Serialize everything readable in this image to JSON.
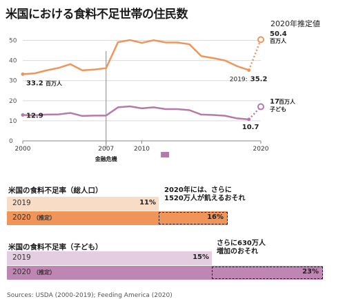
{
  "title": "米国における食料不足世帯の住民数",
  "chart_data": [
    {
      "type": "line",
      "x_ticks": [
        "2000",
        "2007",
        "2010",
        "2020"
      ],
      "y_ticks": [
        "0",
        "10",
        "20",
        "30",
        "40",
        "50"
      ],
      "ylim": [
        0,
        55
      ],
      "xlim": [
        2000,
        2020
      ],
      "grid": true,
      "series": [
        {
          "name": "総人口",
          "color": "#f0955a",
          "x": [
            2000,
            2001,
            2002,
            2003,
            2004,
            2005,
            2006,
            2007,
            2008,
            2009,
            2010,
            2011,
            2012,
            2013,
            2014,
            2015,
            2016,
            2017,
            2018,
            2019
          ],
          "values": [
            33.2,
            33.6,
            35.1,
            36.3,
            38.2,
            35.1,
            35.5,
            36.2,
            49.1,
            50.2,
            48.8,
            50.1,
            49.0,
            49.0,
            48.1,
            42.2,
            41.2,
            40.0,
            37.2,
            35.2
          ],
          "projection": {
            "x": 2020,
            "value": 50.4
          }
        },
        {
          "name": "子ども",
          "color": "#b779a8",
          "x": [
            2000,
            2001,
            2002,
            2003,
            2004,
            2005,
            2006,
            2007,
            2008,
            2009,
            2010,
            2011,
            2012,
            2013,
            2014,
            2015,
            2016,
            2017,
            2018,
            2019
          ],
          "values": [
            12.9,
            12.7,
            13.1,
            13.2,
            13.9,
            12.4,
            12.6,
            12.6,
            16.7,
            17.2,
            16.2,
            16.7,
            15.8,
            15.8,
            15.3,
            13.1,
            12.9,
            12.5,
            11.2,
            10.7
          ],
          "projection": {
            "x": 2020,
            "value": 17
          }
        }
      ],
      "annotations": {
        "start_total": "33.2",
        "start_total_unit": "百万人",
        "start_child": "12.9",
        "end_total_prefix": "2019:",
        "end_total": "35.2",
        "end_child": "10.7",
        "proj_title": "2020年推定値",
        "proj_total": "50.4",
        "proj_total_unit": "百万人",
        "proj_child": "17",
        "proj_child_unit": "百万人",
        "proj_child_label": "子ども",
        "crisis_label": "金融危機"
      }
    },
    {
      "type": "bar",
      "title": "米国の食料不足率（総人口）",
      "categories": [
        "2019",
        "2020"
      ],
      "category_suffix": [
        "",
        "（推定）"
      ],
      "values": [
        11,
        16
      ],
      "value_labels": [
        "11%",
        "16%"
      ],
      "colors": [
        "#f9dcc6",
        "#f0955a"
      ],
      "annotation": [
        "2020年には、さらに",
        "1520万人が飢えるおそれ"
      ]
    },
    {
      "type": "bar",
      "title": "米国の食料不足率（子ども）",
      "categories": [
        "2019",
        "2020"
      ],
      "category_suffix": [
        "",
        "（推定）"
      ],
      "values": [
        15,
        23
      ],
      "value_labels": [
        "15%",
        "23%"
      ],
      "colors": [
        "#e4cde0",
        "#c086b3"
      ],
      "annotation": [
        "さらに630万人",
        "増加のおそれ"
      ]
    }
  ],
  "source": "Sources: USDA (2000-2019); Feeding America (2020)"
}
